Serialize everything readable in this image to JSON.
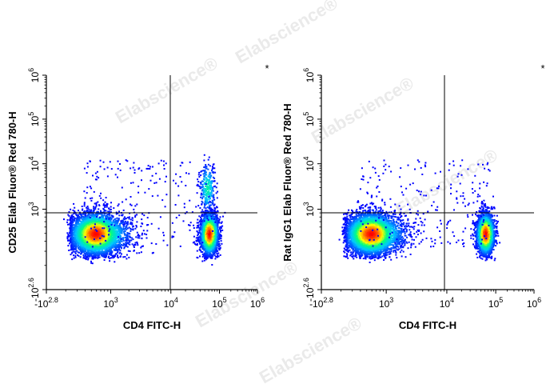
{
  "watermark": "Elabscience",
  "chart_data": [
    {
      "type": "scatter",
      "subtype": "flow-cytometry-density-dot-plot",
      "xlabel": "CD4 FITC-H",
      "ylabel": "CD25 Elab Fluor® Red 780-H",
      "corner_mark": "*",
      "x_scale": "biexponential",
      "y_scale": "biexponential",
      "x_ticks": [
        {
          "base": "-10",
          "exp": "2.8"
        },
        {
          "base": "10",
          "exp": "3"
        },
        {
          "base": "10",
          "exp": "4"
        },
        {
          "base": "10",
          "exp": "5"
        },
        {
          "base": "10",
          "exp": "6"
        }
      ],
      "y_ticks": [
        {
          "base": "-10",
          "exp": "2.6"
        },
        {
          "base": "10",
          "exp": "3"
        },
        {
          "base": "10",
          "exp": "4"
        },
        {
          "base": "10",
          "exp": "5"
        },
        {
          "base": "10",
          "exp": "6"
        }
      ],
      "quadrant_gate": {
        "x": 10000,
        "y": 1200
      },
      "populations": [
        {
          "label": "CD4-negative",
          "x_center": 400,
          "y_center": 300,
          "density": "high"
        },
        {
          "label": "CD4-positive CD25-negative",
          "x_center": 60000,
          "y_center": 300,
          "density": "high"
        },
        {
          "label": "CD4-positive CD25-positive",
          "x_center": 55000,
          "y_center": 3000,
          "density": "low"
        }
      ],
      "color_scale": [
        "#0000ff",
        "#00c8ff",
        "#00ff80",
        "#ffff00",
        "#ff8000",
        "#ff0000"
      ]
    },
    {
      "type": "scatter",
      "subtype": "flow-cytometry-density-dot-plot",
      "xlabel": "CD4 FITC-H",
      "ylabel": "Rat IgG1 Elab Fluor® Red 780-H",
      "corner_mark": "*",
      "x_scale": "biexponential",
      "y_scale": "biexponential",
      "x_ticks": [
        {
          "base": "-10",
          "exp": "2.8"
        },
        {
          "base": "10",
          "exp": "3"
        },
        {
          "base": "10",
          "exp": "4"
        },
        {
          "base": "10",
          "exp": "5"
        },
        {
          "base": "10",
          "exp": "6"
        }
      ],
      "y_ticks": [
        {
          "base": "-10",
          "exp": "2.6"
        },
        {
          "base": "10",
          "exp": "3"
        },
        {
          "base": "10",
          "exp": "4"
        },
        {
          "base": "10",
          "exp": "5"
        },
        {
          "base": "10",
          "exp": "6"
        }
      ],
      "quadrant_gate": {
        "x": 10000,
        "y": 1200
      },
      "populations": [
        {
          "label": "CD4-negative",
          "x_center": 400,
          "y_center": 300,
          "density": "high"
        },
        {
          "label": "CD4-positive",
          "x_center": 60000,
          "y_center": 300,
          "density": "high"
        }
      ],
      "color_scale": [
        "#0000ff",
        "#00c8ff",
        "#00ff80",
        "#ffff00",
        "#ff8000",
        "#ff0000"
      ]
    }
  ]
}
